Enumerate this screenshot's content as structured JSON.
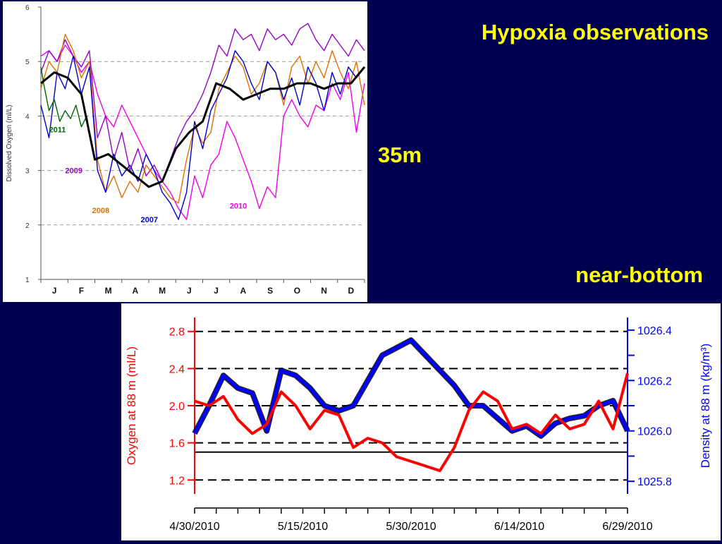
{
  "slide": {
    "title": "Hypoxia observations",
    "label_35m": "35m",
    "label_near_bottom": "near-bottom"
  },
  "colors": {
    "background": "#000050",
    "title": "#ffff00",
    "y2011": "#006600",
    "y2009": "#9900cc",
    "y2008": "#e07000",
    "y2007": "#0000cc",
    "y2010": "#ee00ee",
    "mean": "#000000",
    "oxygen": "#ff0000",
    "density": "#0000ff"
  },
  "chart_data": [
    {
      "type": "line",
      "ylabel": "Dissolved Oxygen (ml/L)",
      "xlabel": "",
      "ylim": [
        1,
        6
      ],
      "yticks": [
        "1",
        "2",
        "3",
        "4",
        "5",
        "6"
      ],
      "categories": [
        "J",
        "F",
        "M",
        "A",
        "M",
        "J",
        "J",
        "A",
        "S",
        "O",
        "N",
        "D"
      ],
      "grid_lines_y": [
        2,
        3,
        4,
        5
      ],
      "series": [
        {
          "name": "2011",
          "color_key": "y2011",
          "x": [
            0.0,
            0.1,
            0.3,
            0.5,
            0.7,
            0.9,
            1.1,
            1.3,
            1.5,
            1.7,
            1.8
          ],
          "y": [
            4.9,
            4.6,
            4.1,
            4.3,
            3.9,
            4.1,
            3.95,
            4.2,
            3.8,
            4.0,
            3.7
          ]
        },
        {
          "name": "2009",
          "color_key": "y2009",
          "x": [
            0.0,
            0.3,
            0.6,
            0.9,
            1.2,
            1.5,
            1.8,
            2.1,
            2.4,
            2.7,
            3.0,
            3.3,
            3.6,
            3.9,
            4.2,
            4.5,
            4.8,
            5.1,
            5.4,
            5.7,
            6.0,
            6.3,
            6.6,
            6.9,
            7.2,
            7.5,
            7.8,
            8.1,
            8.4,
            8.7,
            9.0,
            9.3,
            9.6,
            9.9,
            10.2,
            10.5,
            10.8,
            11.1,
            11.4,
            11.7,
            12.0
          ],
          "y": [
            4.8,
            5.2,
            5.0,
            5.4,
            5.1,
            4.9,
            5.2,
            3.6,
            4.0,
            3.2,
            3.7,
            3.0,
            3.4,
            2.9,
            3.1,
            2.8,
            3.2,
            3.6,
            3.9,
            4.1,
            4.4,
            4.8,
            5.3,
            5.1,
            5.6,
            5.4,
            5.5,
            5.2,
            5.6,
            5.4,
            5.5,
            5.3,
            5.6,
            5.7,
            5.4,
            5.2,
            5.5,
            5.3,
            5.1,
            5.4,
            5.2
          ]
        },
        {
          "name": "2008",
          "color_key": "y2008",
          "x": [
            0.0,
            0.3,
            0.6,
            0.9,
            1.2,
            1.5,
            1.8,
            2.1,
            2.4,
            2.7,
            3.0,
            3.3,
            3.6,
            3.9,
            4.2,
            4.5,
            4.8,
            5.1,
            5.4,
            5.7,
            6.0,
            6.3,
            6.6,
            6.9,
            7.2,
            7.5,
            7.8,
            8.1,
            8.4,
            8.7,
            9.0,
            9.3,
            9.6,
            9.9,
            10.2,
            10.5,
            10.8,
            11.1,
            11.4,
            11.7,
            12.0
          ],
          "y": [
            4.5,
            5.0,
            4.8,
            5.5,
            5.2,
            4.7,
            5.0,
            3.2,
            2.6,
            2.9,
            2.5,
            2.8,
            2.6,
            3.1,
            2.9,
            2.7,
            2.5,
            2.4,
            3.2,
            3.8,
            3.5,
            3.7,
            4.5,
            4.8,
            5.1,
            4.9,
            4.4,
            4.6,
            5.0,
            4.8,
            4.2,
            4.9,
            5.1,
            4.6,
            5.0,
            4.7,
            5.2,
            4.8,
            4.5,
            5.0,
            4.2
          ]
        },
        {
          "name": "2007",
          "color_key": "y2007",
          "x": [
            0.0,
            0.3,
            0.6,
            0.9,
            1.2,
            1.5,
            1.8,
            2.1,
            2.4,
            2.7,
            3.0,
            3.3,
            3.6,
            3.9,
            4.2,
            4.5,
            4.8,
            5.1,
            5.4,
            5.7,
            6.0,
            6.3,
            6.6,
            6.9,
            7.2,
            7.5,
            7.8,
            8.1,
            8.4,
            8.7,
            9.0,
            9.3,
            9.6,
            9.9,
            10.2,
            10.5,
            10.8,
            11.1,
            11.4,
            11.7,
            12.0
          ],
          "y": [
            4.2,
            3.6,
            4.8,
            4.5,
            5.1,
            4.4,
            4.9,
            3.0,
            2.6,
            3.3,
            2.9,
            3.1,
            2.8,
            3.3,
            3.0,
            2.6,
            2.4,
            2.1,
            2.6,
            3.9,
            3.4,
            4.1,
            4.4,
            4.7,
            5.2,
            5.0,
            4.6,
            4.3,
            5.0,
            4.8,
            4.3,
            4.7,
            4.2,
            4.9,
            4.6,
            4.1,
            4.8,
            4.4,
            4.9,
            4.7,
            4.9
          ]
        },
        {
          "name": "2010",
          "color_key": "y2010",
          "x": [
            0.0,
            0.3,
            0.6,
            0.9,
            1.2,
            1.5,
            1.8,
            2.1,
            2.4,
            2.7,
            3.0,
            3.3,
            3.6,
            3.9,
            4.2,
            4.5,
            4.8,
            5.1,
            5.4,
            5.7,
            6.0,
            6.3,
            6.6,
            6.9,
            7.2,
            7.5,
            7.8,
            8.1,
            8.4,
            8.7,
            9.0,
            9.3,
            9.6,
            9.9,
            10.2,
            10.5,
            10.8,
            11.1,
            11.4,
            11.7,
            12.0
          ],
          "y": [
            5.1,
            5.2,
            5.0,
            5.3,
            5.1,
            4.8,
            5.0,
            4.4,
            4.0,
            3.8,
            4.2,
            3.9,
            3.6,
            3.3,
            3.0,
            2.8,
            2.6,
            2.3,
            2.1,
            2.9,
            2.5,
            3.1,
            3.3,
            3.9,
            3.6,
            3.2,
            2.8,
            2.3,
            2.7,
            2.5,
            4.0,
            4.3,
            4.0,
            3.8,
            4.2,
            4.1,
            4.6,
            4.3,
            4.8,
            3.7,
            4.6
          ]
        },
        {
          "name": "",
          "color_key": "mean",
          "x": [
            0.0,
            0.5,
            1.0,
            1.5,
            2.0,
            2.5,
            3.0,
            3.5,
            4.0,
            4.5,
            5.0,
            5.5,
            6.0,
            6.5,
            7.0,
            7.5,
            8.0,
            8.5,
            9.0,
            9.5,
            10.0,
            10.5,
            11.0,
            11.5,
            12.0
          ],
          "y": [
            4.6,
            4.8,
            4.7,
            4.4,
            3.2,
            3.3,
            3.1,
            2.9,
            2.7,
            2.8,
            3.4,
            3.7,
            3.9,
            4.6,
            4.5,
            4.3,
            4.4,
            4.5,
            4.5,
            4.6,
            4.6,
            4.5,
            4.6,
            4.6,
            4.9
          ]
        }
      ]
    },
    {
      "type": "line",
      "ylabel": "Oxygen at 88 m (ml/L)",
      "y2label": "Density at 88 m (kg/m³)",
      "xlabel": "",
      "x_ticks": [
        "4/30/2010",
        "5/15/2010",
        "5/30/2010",
        "6/14/2010",
        "6/29/2010"
      ],
      "x_day_range": [
        0,
        60
      ],
      "ylim": [
        1.05,
        2.95
      ],
      "yticks": [
        "1.2",
        "1.6",
        "2.0",
        "2.4",
        "2.8"
      ],
      "y2lim": [
        1025.75,
        1026.45
      ],
      "y2ticks": [
        "1025.8",
        "1026.0",
        "1026.2",
        "1026.4"
      ],
      "grid_lines_y": [
        1.2,
        1.6,
        2.0,
        2.4,
        2.8
      ],
      "threshold_y": 1.5,
      "series": [
        {
          "name": "Oxygen at 88 m",
          "color_key": "oxygen",
          "axis": "left",
          "x": [
            0,
            2,
            4,
            6,
            8,
            10,
            12,
            14,
            16,
            18,
            20,
            22,
            24,
            26,
            28,
            30,
            32,
            34,
            36,
            38,
            40,
            42,
            44,
            46,
            48,
            50,
            52,
            54,
            56,
            58,
            60
          ],
          "y": [
            2.05,
            2.0,
            2.1,
            1.85,
            1.7,
            1.8,
            2.15,
            2.0,
            1.75,
            1.95,
            1.9,
            1.55,
            1.65,
            1.6,
            1.45,
            1.4,
            1.35,
            1.3,
            1.55,
            1.95,
            2.15,
            2.05,
            1.75,
            1.8,
            1.7,
            1.9,
            1.75,
            1.8,
            2.05,
            1.75,
            2.35
          ]
        },
        {
          "name": "Density at 88 m",
          "color_key": "density",
          "axis": "right",
          "x": [
            0,
            2,
            4,
            6,
            8,
            10,
            12,
            14,
            16,
            18,
            20,
            22,
            24,
            26,
            28,
            30,
            32,
            34,
            36,
            38,
            40,
            42,
            44,
            46,
            48,
            50,
            52,
            54,
            56,
            58,
            60
          ],
          "y": [
            1025.99,
            1026.1,
            1026.22,
            1026.17,
            1026.15,
            1026.0,
            1026.24,
            1026.22,
            1026.17,
            1026.1,
            1026.08,
            1026.1,
            1026.2,
            1026.3,
            1026.33,
            1026.36,
            1026.3,
            1026.24,
            1026.18,
            1026.1,
            1026.1,
            1026.05,
            1026.0,
            1026.02,
            1025.98,
            1026.03,
            1026.05,
            1026.06,
            1026.1,
            1026.12,
            1026.0
          ]
        }
      ]
    }
  ]
}
